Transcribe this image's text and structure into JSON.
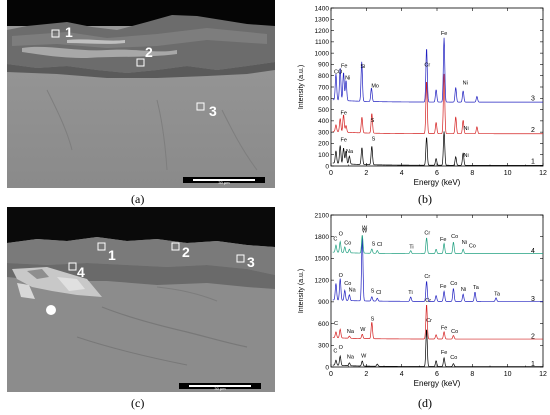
{
  "panels": {
    "a": {
      "caption": "(a)",
      "markers": [
        "1",
        "2",
        "3"
      ],
      "scalebar": "30 μm"
    },
    "b": {
      "caption": "(b)"
    },
    "c": {
      "caption": "(c)",
      "markers": [
        "1",
        "2",
        "3",
        "4"
      ],
      "scalebar": "30 μm"
    },
    "d": {
      "caption": "(d)"
    }
  },
  "chart_data": [
    {
      "type": "line",
      "panel": "b",
      "xlabel": "Energy (keV)",
      "ylabel": "Intensity (a.u.)",
      "xlim": [
        0,
        12
      ],
      "ylim": [
        0,
        1400
      ],
      "xticks": [
        0,
        2,
        4,
        6,
        8,
        10,
        12
      ],
      "yticks": [
        0,
        100,
        200,
        300,
        400,
        500,
        600,
        700,
        800,
        900,
        1000,
        1100,
        1200,
        1300,
        1400
      ],
      "colors": [
        "#000000",
        "#d42020",
        "#2020c0"
      ],
      "series": [
        {
          "name": "1",
          "offset": 0,
          "end_label": "1",
          "peaks": [
            [
              0.28,
              110
            ],
            [
              0.52,
              160
            ],
            [
              0.71,
              140
            ],
            [
              0.85,
              115
            ],
            [
              1.04,
              70
            ],
            [
              1.75,
              150
            ],
            [
              2.31,
              165
            ],
            [
              5.41,
              250
            ],
            [
              5.95,
              60
            ],
            [
              6.4,
              300
            ],
            [
              7.06,
              75
            ],
            [
              7.48,
              110
            ]
          ],
          "labels": [
            {
              "text": "Fe",
              "x": 0.72,
              "y": 215
            },
            {
              "text": "Na",
              "x": 1.05,
              "y": 115
            },
            {
              "text": "S",
              "x": 2.4,
              "y": 225
            },
            {
              "text": "Ni",
              "x": 7.65,
              "y": 80
            }
          ]
        },
        {
          "name": "2",
          "offset": 280,
          "end_label": "2",
          "peaks": [
            [
              0.28,
              60
            ],
            [
              0.52,
              120
            ],
            [
              0.71,
              155
            ],
            [
              0.85,
              60
            ],
            [
              1.75,
              140
            ],
            [
              2.31,
              175
            ],
            [
              5.41,
              470
            ],
            [
              5.95,
              100
            ],
            [
              6.4,
              530
            ],
            [
              7.06,
              150
            ],
            [
              7.48,
              120
            ],
            [
              8.26,
              60
            ]
          ],
          "labels": [
            {
              "text": "Fe",
              "x": 0.72,
              "y": 455
            },
            {
              "text": "S",
              "x": 2.35,
              "y": 390
            },
            {
              "text": "Ni",
              "x": 7.65,
              "y": 320
            }
          ]
        },
        {
          "name": "3",
          "offset": 560,
          "end_label": "3",
          "peaks": [
            [
              0.28,
              230
            ],
            [
              0.52,
              285
            ],
            [
              0.71,
              250
            ],
            [
              0.85,
              180
            ],
            [
              1.74,
              350
            ],
            [
              2.29,
              120
            ],
            [
              5.41,
              480
            ],
            [
              5.95,
              110
            ],
            [
              6.4,
              570
            ],
            [
              7.06,
              130
            ],
            [
              7.48,
              100
            ],
            [
              8.26,
              50
            ]
          ],
          "labels": [
            {
              "text": "C",
              "x": 0.28,
              "y": 820
            },
            {
              "text": "O",
              "x": 0.52,
              "y": 820
            },
            {
              "text": "Fe",
              "x": 0.75,
              "y": 875
            },
            {
              "text": "Ni",
              "x": 0.95,
              "y": 765
            },
            {
              "text": "Si",
              "x": 1.8,
              "y": 870
            },
            {
              "text": "Mo",
              "x": 2.5,
              "y": 695
            },
            {
              "text": "Cr",
              "x": 5.45,
              "y": 880
            },
            {
              "text": "Fe",
              "x": 6.4,
              "y": 1160
            },
            {
              "text": "Ni",
              "x": 7.6,
              "y": 720
            }
          ]
        }
      ]
    },
    {
      "type": "line",
      "panel": "d",
      "xlabel": "Energy (keV)",
      "ylabel": "Intensity (a.u.)",
      "xlim": [
        0,
        12
      ],
      "ylim": [
        0,
        2100
      ],
      "xticks": [
        0,
        2,
        4,
        6,
        8,
        10,
        12
      ],
      "yticks": [
        0,
        300,
        600,
        900,
        1200,
        1500,
        1800,
        2100
      ],
      "colors": [
        "#000000",
        "#d42020",
        "#2020c0",
        "#20a080"
      ],
      "series": [
        {
          "name": "1",
          "offset": 0,
          "end_label": "1",
          "peaks": [
            [
              0.28,
              70
            ],
            [
              0.52,
              130
            ],
            [
              1.04,
              40
            ],
            [
              1.77,
              70
            ],
            [
              2.62,
              30
            ],
            [
              5.41,
              520
            ],
            [
              5.95,
              80
            ],
            [
              6.4,
              120
            ],
            [
              6.93,
              40
            ]
          ],
          "labels": [
            {
              "text": "C",
              "x": 0.25,
              "y": 200
            },
            {
              "text": "O",
              "x": 0.55,
              "y": 250
            },
            {
              "text": "Na",
              "x": 1.1,
              "y": 120
            },
            {
              "text": "W",
              "x": 1.85,
              "y": 130
            },
            {
              "text": "Cr",
              "x": 5.55,
              "y": 620
            },
            {
              "text": "Fe",
              "x": 6.4,
              "y": 180
            },
            {
              "text": "Co",
              "x": 6.95,
              "y": 110
            }
          ]
        },
        {
          "name": "2",
          "offset": 380,
          "end_label": "2",
          "peaks": [
            [
              0.28,
              80
            ],
            [
              0.52,
              120
            ],
            [
              1.04,
              30
            ],
            [
              1.77,
              60
            ],
            [
              2.31,
              230
            ],
            [
              5.41,
              480
            ],
            [
              5.95,
              60
            ],
            [
              6.4,
              100
            ],
            [
              6.93,
              50
            ]
          ],
          "labels": [
            {
              "text": "C",
              "x": 0.28,
              "y": 580
            },
            {
              "text": "Na",
              "x": 1.1,
              "y": 470
            },
            {
              "text": "W",
              "x": 1.8,
              "y": 500
            },
            {
              "text": "S",
              "x": 2.35,
              "y": 640
            },
            {
              "text": "Cr",
              "x": 5.5,
              "y": 900
            },
            {
              "text": "Fe",
              "x": 6.4,
              "y": 520
            },
            {
              "text": "Co",
              "x": 7.0,
              "y": 470
            }
          ]
        },
        {
          "name": "3",
          "offset": 900,
          "end_label": "3",
          "peaks": [
            [
              0.28,
              230
            ],
            [
              0.52,
              300
            ],
            [
              0.78,
              140
            ],
            [
              1.04,
              80
            ],
            [
              1.77,
              900
            ],
            [
              2.31,
              60
            ],
            [
              2.62,
              40
            ],
            [
              4.51,
              60
            ],
            [
              5.41,
              280
            ],
            [
              5.95,
              80
            ],
            [
              6.4,
              140
            ],
            [
              6.93,
              180
            ],
            [
              7.48,
              100
            ],
            [
              8.15,
              130
            ],
            [
              9.34,
              50
            ]
          ],
          "labels": [
            {
              "text": "O",
              "x": 0.55,
              "y": 1240
            },
            {
              "text": "Co",
              "x": 0.95,
              "y": 1130
            },
            {
              "text": "Na",
              "x": 1.2,
              "y": 1040
            },
            {
              "text": "W",
              "x": 1.9,
              "y": 1860
            },
            {
              "text": "S",
              "x": 2.35,
              "y": 1030
            },
            {
              "text": "Cl",
              "x": 2.7,
              "y": 1010
            },
            {
              "text": "Ti",
              "x": 4.5,
              "y": 1010
            },
            {
              "text": "Cr",
              "x": 5.45,
              "y": 1230
            },
            {
              "text": "Fe",
              "x": 6.35,
              "y": 1090
            },
            {
              "text": "Co",
              "x": 6.95,
              "y": 1130
            },
            {
              "text": "Ni",
              "x": 7.5,
              "y": 1050
            },
            {
              "text": "Ta",
              "x": 8.2,
              "y": 1080
            },
            {
              "text": "Ta",
              "x": 9.4,
              "y": 990
            }
          ]
        },
        {
          "name": "4",
          "offset": 1560,
          "end_label": "4",
          "peaks": [
            [
              0.28,
              100
            ],
            [
              0.52,
              150
            ],
            [
              0.78,
              80
            ],
            [
              1.04,
              50
            ],
            [
              1.77,
              250
            ],
            [
              2.31,
              60
            ],
            [
              2.62,
              40
            ],
            [
              4.51,
              40
            ],
            [
              5.41,
              220
            ],
            [
              5.95,
              60
            ],
            [
              6.4,
              140
            ],
            [
              6.93,
              160
            ],
            [
              7.48,
              60
            ]
          ],
          "labels": [
            {
              "text": "C",
              "x": 0.25,
              "y": 1750
            },
            {
              "text": "O",
              "x": 0.55,
              "y": 1820
            },
            {
              "text": "Co",
              "x": 0.95,
              "y": 1690
            },
            {
              "text": "W",
              "x": 1.9,
              "y": 1900
            },
            {
              "text": "S",
              "x": 2.4,
              "y": 1680
            },
            {
              "text": "Cl",
              "x": 2.75,
              "y": 1670
            },
            {
              "text": "Ti",
              "x": 4.55,
              "y": 1640
            },
            {
              "text": "Cr",
              "x": 5.45,
              "y": 1830
            },
            {
              "text": "Fe",
              "x": 6.35,
              "y": 1740
            },
            {
              "text": "Co",
              "x": 7.0,
              "y": 1780
            },
            {
              "text": "Ni",
              "x": 7.55,
              "y": 1700
            },
            {
              "text": "Co",
              "x": 8.0,
              "y": 1650
            }
          ]
        }
      ]
    }
  ]
}
